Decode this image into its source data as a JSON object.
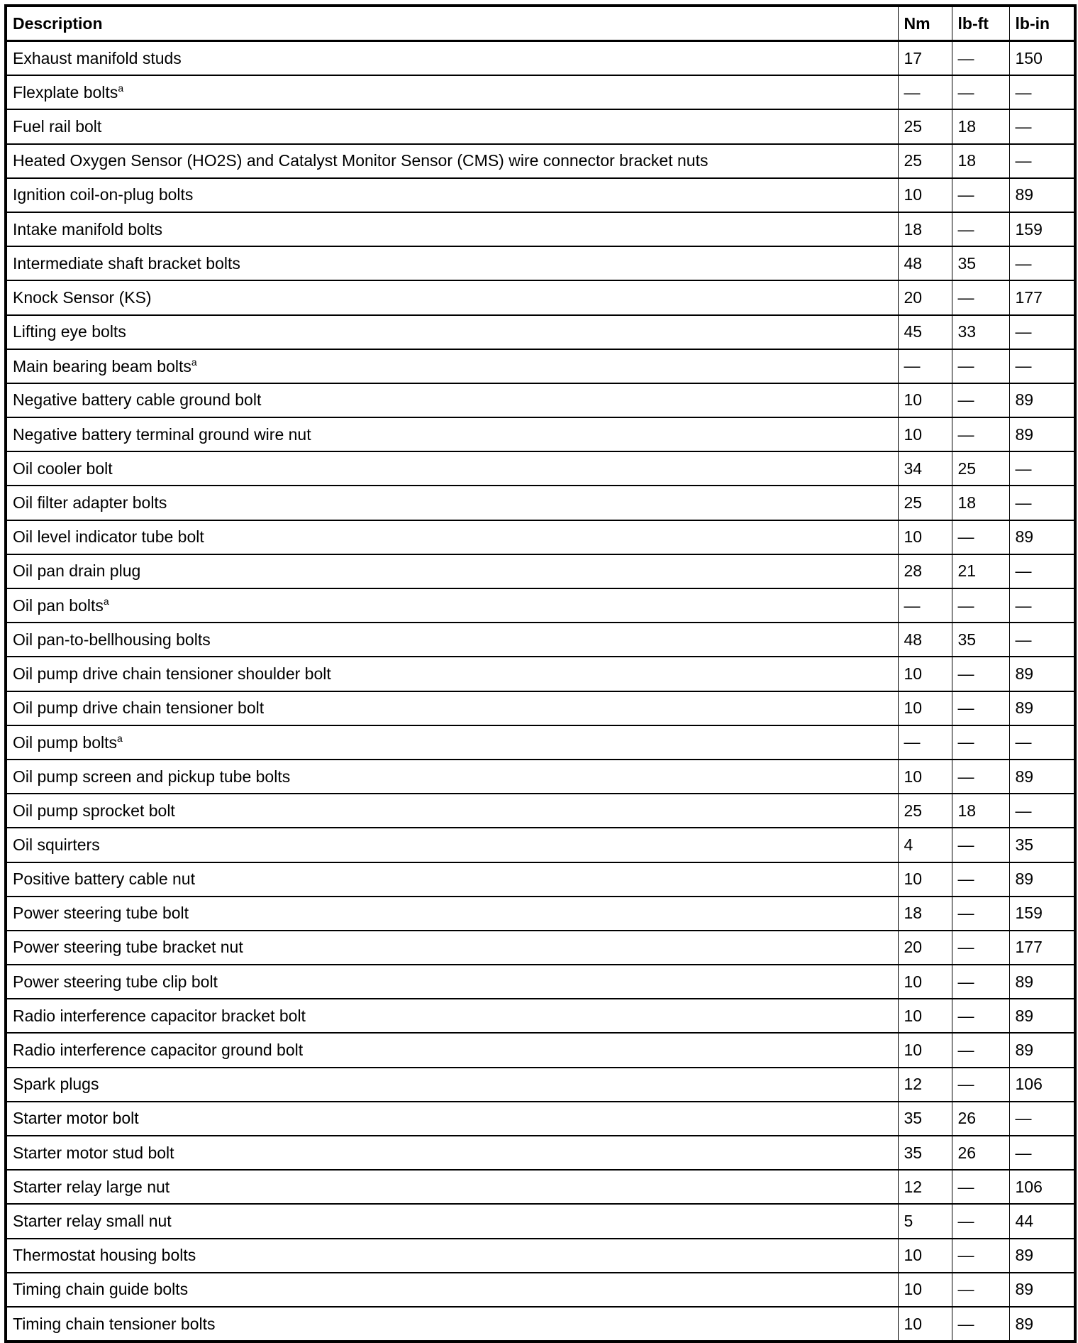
{
  "headers": [
    "Description",
    "Nm",
    "lb-ft",
    "lb-in"
  ],
  "rows": [
    {
      "d": "Exhaust manifold studs",
      "sup": "",
      "nm": "17",
      "lbft": "—",
      "lbin": "150"
    },
    {
      "d": "Flexplate bolts",
      "sup": "a",
      "nm": "—",
      "lbft": "—",
      "lbin": "—"
    },
    {
      "d": "Fuel rail bolt",
      "sup": "",
      "nm": "25",
      "lbft": "18",
      "lbin": "—"
    },
    {
      "d": "Heated Oxygen Sensor (HO2S) and Catalyst Monitor Sensor (CMS) wire connector bracket nuts",
      "sup": "",
      "nm": "25",
      "lbft": "18",
      "lbin": "—"
    },
    {
      "d": "Ignition coil-on-plug bolts",
      "sup": "",
      "nm": "10",
      "lbft": "—",
      "lbin": "89"
    },
    {
      "d": "Intake manifold bolts",
      "sup": "",
      "nm": "18",
      "lbft": "—",
      "lbin": "159"
    },
    {
      "d": "Intermediate shaft bracket bolts",
      "sup": "",
      "nm": "48",
      "lbft": "35",
      "lbin": "—"
    },
    {
      "d": "Knock Sensor (KS)",
      "sup": "",
      "nm": "20",
      "lbft": "—",
      "lbin": "177"
    },
    {
      "d": "Lifting eye bolts",
      "sup": "",
      "nm": "45",
      "lbft": "33",
      "lbin": "—"
    },
    {
      "d": "Main bearing beam bolts",
      "sup": "a",
      "nm": "—",
      "lbft": "—",
      "lbin": "—"
    },
    {
      "d": "Negative battery cable ground bolt",
      "sup": "",
      "nm": "10",
      "lbft": "—",
      "lbin": "89"
    },
    {
      "d": "Negative battery terminal ground wire nut",
      "sup": "",
      "nm": "10",
      "lbft": "—",
      "lbin": "89"
    },
    {
      "d": "Oil cooler bolt",
      "sup": "",
      "nm": "34",
      "lbft": "25",
      "lbin": "—"
    },
    {
      "d": "Oil filter adapter bolts",
      "sup": "",
      "nm": "25",
      "lbft": "18",
      "lbin": "—"
    },
    {
      "d": "Oil level indicator tube bolt",
      "sup": "",
      "nm": "10",
      "lbft": "—",
      "lbin": "89"
    },
    {
      "d": "Oil pan drain plug",
      "sup": "",
      "nm": "28",
      "lbft": "21",
      "lbin": "—"
    },
    {
      "d": "Oil pan bolts",
      "sup": "a",
      "nm": "—",
      "lbft": "—",
      "lbin": "—"
    },
    {
      "d": "Oil pan-to-bellhousing bolts",
      "sup": "",
      "nm": "48",
      "lbft": "35",
      "lbin": "—"
    },
    {
      "d": "Oil pump drive chain tensioner shoulder bolt",
      "sup": "",
      "nm": "10",
      "lbft": "—",
      "lbin": "89"
    },
    {
      "d": "Oil pump drive chain tensioner bolt",
      "sup": "",
      "nm": "10",
      "lbft": "—",
      "lbin": "89"
    },
    {
      "d": "Oil pump bolts",
      "sup": "a",
      "nm": "—",
      "lbft": "—",
      "lbin": "—"
    },
    {
      "d": "Oil pump screen and pickup tube bolts",
      "sup": "",
      "nm": "10",
      "lbft": "—",
      "lbin": "89"
    },
    {
      "d": "Oil pump sprocket bolt",
      "sup": "",
      "nm": "25",
      "lbft": "18",
      "lbin": "—"
    },
    {
      "d": "Oil squirters",
      "sup": "",
      "nm": "4",
      "lbft": "—",
      "lbin": "35"
    },
    {
      "d": "Positive battery cable nut",
      "sup": "",
      "nm": "10",
      "lbft": "—",
      "lbin": "89"
    },
    {
      "d": "Power steering tube bolt",
      "sup": "",
      "nm": "18",
      "lbft": "—",
      "lbin": "159"
    },
    {
      "d": "Power steering tube bracket nut",
      "sup": "",
      "nm": "20",
      "lbft": "—",
      "lbin": "177"
    },
    {
      "d": "Power steering tube clip bolt",
      "sup": "",
      "nm": "10",
      "lbft": "—",
      "lbin": "89"
    },
    {
      "d": "Radio interference capacitor bracket bolt",
      "sup": "",
      "nm": "10",
      "lbft": "—",
      "lbin": "89"
    },
    {
      "d": "Radio interference capacitor ground bolt",
      "sup": "",
      "nm": "10",
      "lbft": "—",
      "lbin": "89"
    },
    {
      "d": "Spark plugs",
      "sup": "",
      "nm": "12",
      "lbft": "—",
      "lbin": "106"
    },
    {
      "d": "Starter motor bolt",
      "sup": "",
      "nm": "35",
      "lbft": "26",
      "lbin": "—"
    },
    {
      "d": "Starter motor stud bolt",
      "sup": "",
      "nm": "35",
      "lbft": "26",
      "lbin": "—"
    },
    {
      "d": "Starter relay large nut",
      "sup": "",
      "nm": "12",
      "lbft": "—",
      "lbin": "106"
    },
    {
      "d": "Starter relay small nut",
      "sup": "",
      "nm": "5",
      "lbft": "—",
      "lbin": "44"
    },
    {
      "d": "Thermostat housing bolts",
      "sup": "",
      "nm": "10",
      "lbft": "—",
      "lbin": "89"
    },
    {
      "d": "Timing chain guide bolts",
      "sup": "",
      "nm": "10",
      "lbft": "—",
      "lbin": "89"
    },
    {
      "d": "Timing chain tensioner bolts",
      "sup": "",
      "nm": "10",
      "lbft": "—",
      "lbin": "89"
    }
  ]
}
